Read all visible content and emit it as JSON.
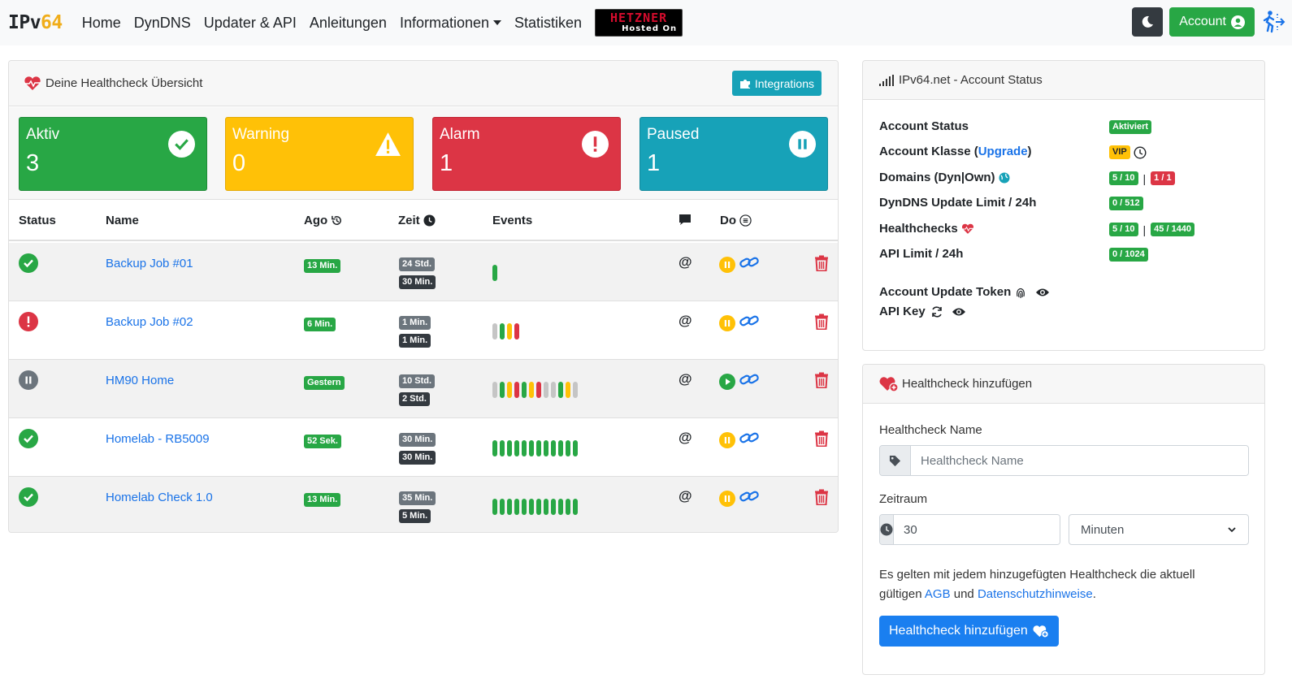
{
  "navbar": {
    "brand_left": "IPv",
    "brand_right": "64",
    "links": [
      "Home",
      "DynDNS",
      "Updater & API",
      "Anleitungen",
      "Informationen",
      "Statistiken"
    ],
    "hetzner_top": "HETZNER",
    "hetzner_bottom": "Hosted On",
    "account_label": "Account"
  },
  "overview": {
    "title": "Deine Healthcheck Übersicht",
    "integrations_label": "Integrations",
    "tiles": [
      {
        "label": "Aktiv",
        "value": "3",
        "color": "#28a745"
      },
      {
        "label": "Warning",
        "value": "0",
        "color": "#ffc107"
      },
      {
        "label": "Alarm",
        "value": "1",
        "color": "#dc3545"
      },
      {
        "label": "Paused",
        "value": "1",
        "color": "#17a2b8"
      }
    ],
    "columns": {
      "status": "Status",
      "name": "Name",
      "ago": "Ago",
      "zeit": "Zeit",
      "events": "Events",
      "do": "Do"
    },
    "rows": [
      {
        "status": "ok",
        "name": "Backup Job #01",
        "ago": "13 Min.",
        "zeit_top": "24 Std.",
        "zeit_bottom": "30 Min.",
        "events": [
          "g"
        ],
        "action": "pause"
      },
      {
        "status": "alarm",
        "name": "Backup Job #02",
        "ago": "6 Min.",
        "zeit_top": "1 Min.",
        "zeit_bottom": "1 Min.",
        "events": [
          "gr",
          "g",
          "y",
          "r"
        ],
        "action": "pause"
      },
      {
        "status": "paused",
        "name": "HM90 Home",
        "ago": "Gestern",
        "zeit_top": "10 Std.",
        "zeit_bottom": "2 Std.",
        "events": [
          "gr",
          "g",
          "y",
          "r",
          "g",
          "y",
          "r",
          "gr",
          "gr",
          "g",
          "y",
          "gr"
        ],
        "action": "play"
      },
      {
        "status": "ok",
        "name": "Homelab - RB5009",
        "ago": "52 Sek.",
        "zeit_top": "30 Min.",
        "zeit_bottom": "30 Min.",
        "events": [
          "g",
          "g",
          "g",
          "g",
          "g",
          "g",
          "g",
          "g",
          "g",
          "g",
          "g",
          "g"
        ],
        "action": "pause"
      },
      {
        "status": "ok",
        "name": "Homelab Check 1.0",
        "ago": "13 Min.",
        "zeit_top": "35 Min.",
        "zeit_bottom": "5 Min.",
        "events": [
          "g",
          "g",
          "g",
          "g",
          "g",
          "g",
          "g",
          "g",
          "g",
          "g",
          "g",
          "g"
        ],
        "action": "pause"
      }
    ]
  },
  "account_status": {
    "title": "IPv64.net - Account Status",
    "status_label": "Account Status",
    "status_value": "Aktiviert",
    "klasse_label": "Account Klasse (",
    "klasse_link": "Upgrade",
    "klasse_close": ")",
    "klasse_value": "VIP",
    "domains_label": "Domains (Dyn|Own)",
    "domains_dyn": "5 / 10",
    "domains_own": "1 / 1",
    "dyndns_label": "DynDNS Update Limit / 24h",
    "dyndns_value": "0 / 512",
    "healthchecks_label": "Healthchecks",
    "healthchecks_count": "5 / 10",
    "healthchecks_limit": "45 / 1440",
    "api_label": "API Limit / 24h",
    "api_value": "0 / 1024",
    "token_label": "Account Update Token",
    "apikey_label": "API Key"
  },
  "add_form": {
    "title": "Healthcheck hinzufügen",
    "name_label": "Healthcheck Name",
    "name_placeholder": "Healthcheck Name",
    "zeitraum_label": "Zeitraum",
    "zeitraum_value": "30",
    "unit_value": "Minuten",
    "notice_text": "Es gelten mit jedem hinzugefügten Healthcheck die aktuell gültigen",
    "agb_link": "AGB",
    "und": "und",
    "privacy_link": "Datenschutzhinweise",
    "period": ".",
    "submit_label": "Healthcheck hinzufügen"
  }
}
